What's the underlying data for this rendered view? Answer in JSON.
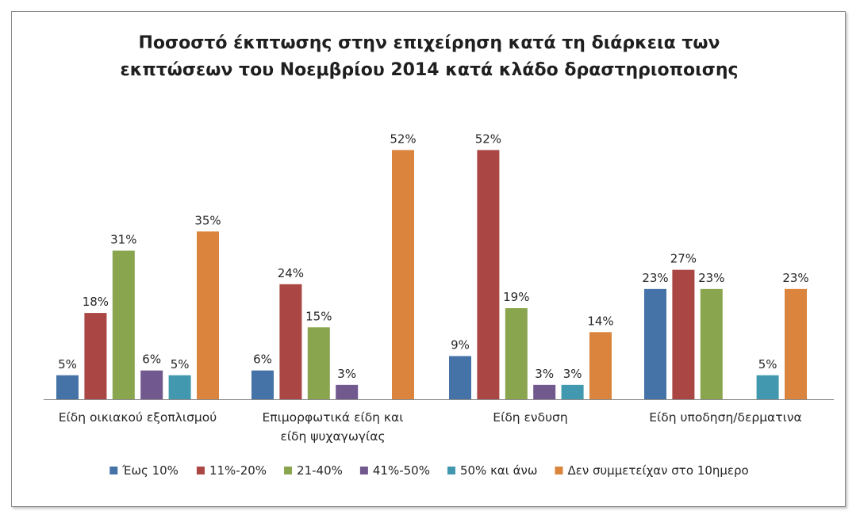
{
  "chart_data": {
    "type": "bar",
    "title_lines": [
      "Ποσοστό έκπτωσης στην επιχείρηση κατά τη διάρκεια των",
      "εκπτώσεων του Νοεμβρίου 2014 κατά κλάδο δραστηριοποισης"
    ],
    "categories": [
      [
        "Είδη οικιακού εξοπλισμού"
      ],
      [
        "Επιμορφωτικά είδη και",
        "είδη ψυχαγωγίας"
      ],
      [
        "Είδη ενδυση"
      ],
      [
        "Είδη υποδηση/δερματινα"
      ]
    ],
    "series": [
      {
        "name": "Έως 10%",
        "color": "#4572A7",
        "values": [
          5,
          6,
          9,
          23
        ],
        "labels": [
          "5%",
          "6%",
          "9%",
          "23%"
        ]
      },
      {
        "name": "11%-20%",
        "color": "#AA4643",
        "values": [
          18,
          24,
          52,
          27
        ],
        "labels": [
          "18%",
          "24%",
          "52%",
          "27%"
        ]
      },
      {
        "name": "21-40%",
        "color": "#89A54E",
        "values": [
          31,
          15,
          19,
          23
        ],
        "labels": [
          "31%",
          "15%",
          "19%",
          "23%"
        ]
      },
      {
        "name": "41%-50%",
        "color": "#71588F",
        "values": [
          6,
          3,
          3,
          null
        ],
        "labels": [
          "6%",
          "3%",
          "3%",
          null
        ]
      },
      {
        "name": "50% και άνω",
        "color": "#4198AF",
        "values": [
          5,
          null,
          3,
          5
        ],
        "labels": [
          "5%",
          null,
          "3%",
          "5%"
        ]
      },
      {
        "name": "Δεν συμμετείχαν στο 10ημερο",
        "color": "#DB843D",
        "values": [
          35,
          52,
          14,
          23
        ],
        "labels": [
          "35%",
          "52%",
          "14%",
          "23%"
        ]
      }
    ],
    "ylim": [
      0,
      60
    ],
    "legend_position": "bottom",
    "grid": false
  }
}
